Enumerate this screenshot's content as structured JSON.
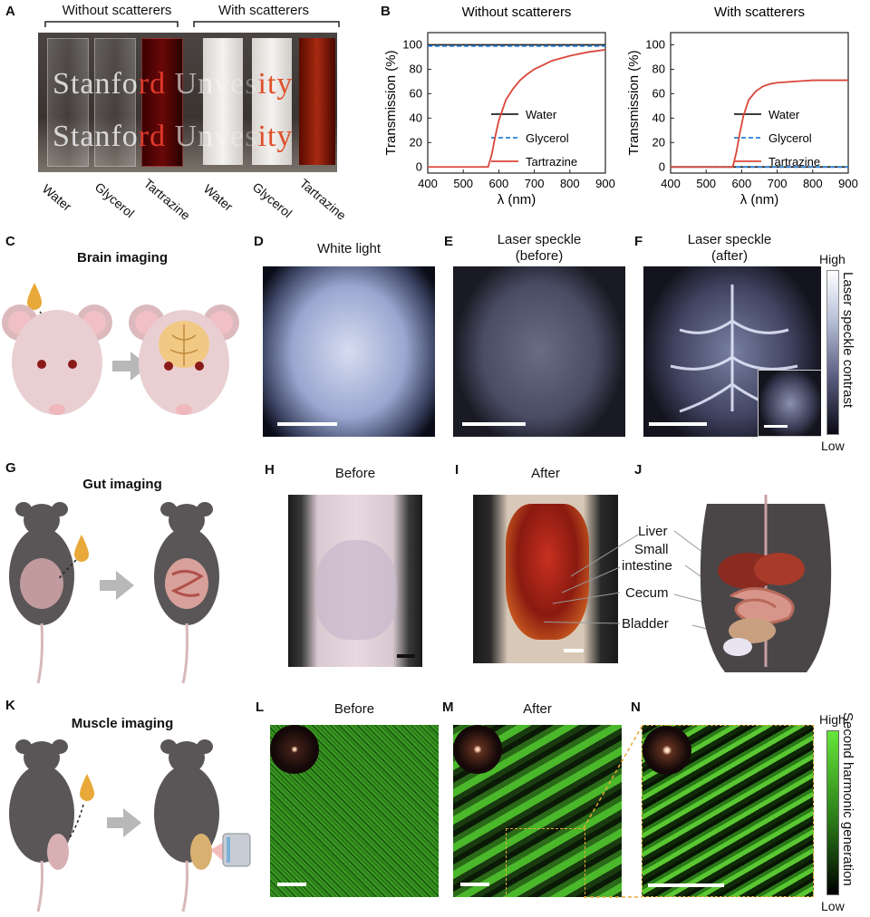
{
  "panels": {
    "A": {
      "label": "A",
      "group_left": "Without scatterers",
      "group_right": "With scatterers",
      "label_text_top": [
        "Stanfo",
        "rd",
        "Un",
        "ve",
        "s",
        "ity"
      ],
      "label_text_bottom": [
        "Stanfo",
        "rd",
        "Un",
        "ve",
        "s",
        "ity"
      ],
      "vials": [
        "Water",
        "Glycerol",
        "Tartrazine",
        "Water",
        "Glycerol",
        "Tartrazine"
      ]
    },
    "B": {
      "label": "B"
    },
    "C": {
      "label": "C",
      "title": "Brain imaging"
    },
    "D": {
      "label": "D",
      "title": "White light"
    },
    "E": {
      "label": "E",
      "title_line1": "Laser speckle",
      "title_line2": "(before)"
    },
    "F": {
      "label": "F",
      "title_line1": "Laser speckle",
      "title_line2": "(after)"
    },
    "F_colorbar": {
      "high": "High",
      "low": "Low",
      "label": "Laser speckle contrast"
    },
    "G": {
      "label": "G",
      "title": "Gut imaging"
    },
    "H": {
      "label": "H",
      "title": "Before"
    },
    "I": {
      "label": "I",
      "title": "After"
    },
    "J": {
      "label": "J",
      "organs": [
        "Liver",
        "Small",
        "intestine",
        "Cecum",
        "Bladder"
      ]
    },
    "K": {
      "label": "K",
      "title": "Muscle imaging"
    },
    "L": {
      "label": "L",
      "title": "Before"
    },
    "M": {
      "label": "M",
      "title": "After"
    },
    "N": {
      "label": "N"
    },
    "N_colorbar": {
      "high": "High",
      "low": "Low",
      "label": "Second harmonic generation"
    }
  },
  "colors": {
    "water": "#222222",
    "glycerol": "#2a7fd4",
    "tartrazine": "#d9463a",
    "shg_high": "#66e63a",
    "shg_low": "#000000",
    "speckle_high": "#ffffff",
    "speckle_low": "#0a0a14",
    "dye": "#e8a93a",
    "mouse_pink": "#e9cfd1",
    "mouse_dark": "#5a5658"
  },
  "chart_data": [
    {
      "type": "line",
      "title": "Without scatterers",
      "xlabel": "λ (nm)",
      "ylabel": "Transmission (%)",
      "xlim": [
        400,
        900
      ],
      "ylim": [
        -5,
        110
      ],
      "xticks": [
        400,
        500,
        600,
        700,
        800,
        900
      ],
      "yticks": [
        0,
        20,
        40,
        60,
        80,
        100
      ],
      "legend_position": "center-right",
      "grid": false,
      "series": [
        {
          "name": "Water",
          "style": "solid",
          "color": "#222222",
          "x": [
            400,
            900
          ],
          "y": [
            100,
            100
          ]
        },
        {
          "name": "Glycerol",
          "style": "dashed",
          "color": "#2a7fd4",
          "x": [
            400,
            900
          ],
          "y": [
            99,
            99
          ]
        },
        {
          "name": "Tartrazine",
          "style": "solid",
          "color": "#d9463a",
          "x": [
            400,
            570,
            580,
            590,
            600,
            620,
            640,
            660,
            680,
            700,
            750,
            800,
            850,
            900
          ],
          "y": [
            0,
            0,
            10,
            25,
            38,
            55,
            64,
            71,
            76,
            80,
            87,
            91,
            94,
            96
          ]
        }
      ]
    },
    {
      "type": "line",
      "title": "With scatterers",
      "xlabel": "λ (nm)",
      "ylabel": "Transmission (%)",
      "xlim": [
        400,
        900
      ],
      "ylim": [
        -5,
        110
      ],
      "xticks": [
        400,
        500,
        600,
        700,
        800,
        900
      ],
      "yticks": [
        0,
        20,
        40,
        60,
        80,
        100
      ],
      "legend_position": "center-right",
      "grid": false,
      "series": [
        {
          "name": "Water",
          "style": "solid",
          "color": "#222222",
          "x": [
            400,
            900
          ],
          "y": [
            0,
            0
          ]
        },
        {
          "name": "Glycerol",
          "style": "dashed",
          "color": "#2a7fd4",
          "x": [
            400,
            900
          ],
          "y": [
            0,
            0
          ]
        },
        {
          "name": "Tartrazine",
          "style": "solid",
          "color": "#d9463a",
          "x": [
            400,
            575,
            585,
            595,
            605,
            620,
            640,
            660,
            680,
            700,
            750,
            800,
            850,
            900
          ],
          "y": [
            0,
            0,
            12,
            28,
            42,
            55,
            62,
            66,
            68,
            69,
            70,
            71,
            71,
            71
          ]
        }
      ]
    }
  ]
}
